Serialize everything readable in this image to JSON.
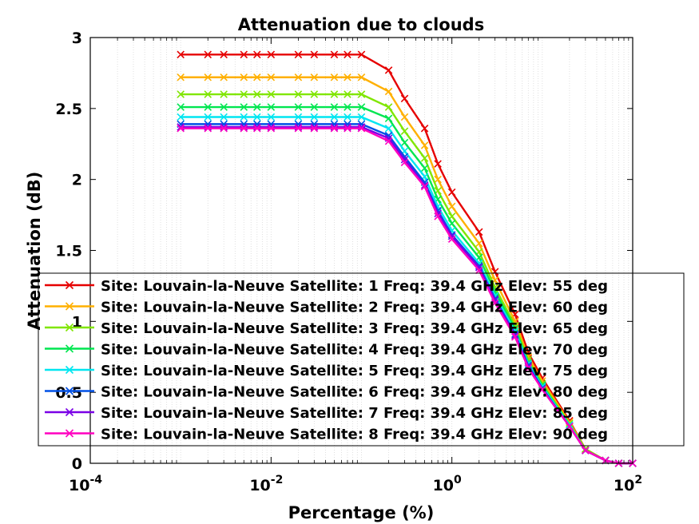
{
  "chart_data": {
    "type": "line",
    "title": "Attenuation due to clouds",
    "xlabel": "Percentage (%)",
    "ylabel": "Attenuation (dB)",
    "xscale": "log",
    "xlim": [
      0.0001,
      100
    ],
    "ylim": [
      0,
      3
    ],
    "grid": "minor dotted on x",
    "legend_position": "lower-left",
    "x_ticks": [
      {
        "base": "10",
        "exp": "-4"
      },
      {
        "base": "10",
        "exp": "-2"
      },
      {
        "base": "10",
        "exp": "0"
      },
      {
        "base": "10",
        "exp": "2"
      }
    ],
    "y_ticks": [
      "0",
      "0.5",
      "1",
      "1.5",
      "2",
      "2.5",
      "3"
    ],
    "x": [
      0.001,
      0.002,
      0.003,
      0.005,
      0.007,
      0.01,
      0.02,
      0.03,
      0.05,
      0.07,
      0.1,
      0.2,
      0.3,
      0.5,
      0.7,
      1,
      2,
      3,
      5,
      7,
      10,
      20,
      30,
      50,
      70,
      100
    ],
    "series": [
      {
        "name": "Site: Louvain-la-Neuve Satellite: 1 Freq: 39.4 GHz Elev: 55 deg",
        "color": "#e60000",
        "values": [
          2.88,
          2.88,
          2.88,
          2.88,
          2.88,
          2.88,
          2.88,
          2.88,
          2.88,
          2.88,
          2.88,
          2.77,
          2.57,
          2.36,
          2.11,
          1.91,
          1.63,
          1.35,
          1.05,
          0.78,
          0.6,
          0.3,
          0.1,
          0.02,
          0.0,
          0.0
        ]
      },
      {
        "name": "Site: Louvain-la-Neuve Satellite: 2 Freq: 39.4 GHz Elev: 60 deg",
        "color": "#ffb000",
        "values": [
          2.72,
          2.72,
          2.72,
          2.72,
          2.72,
          2.72,
          2.72,
          2.72,
          2.72,
          2.72,
          2.72,
          2.62,
          2.44,
          2.24,
          2.0,
          1.81,
          1.55,
          1.29,
          1.0,
          0.75,
          0.58,
          0.29,
          0.1,
          0.02,
          0.0,
          0.0
        ]
      },
      {
        "name": "Site: Louvain-la-Neuve Satellite: 3 Freq: 39.4 GHz Elev: 65 deg",
        "color": "#80e600",
        "values": [
          2.6,
          2.6,
          2.6,
          2.6,
          2.6,
          2.6,
          2.6,
          2.6,
          2.6,
          2.6,
          2.6,
          2.51,
          2.34,
          2.15,
          1.92,
          1.74,
          1.49,
          1.24,
          0.97,
          0.73,
          0.56,
          0.28,
          0.1,
          0.02,
          0.0,
          0.0
        ]
      },
      {
        "name": "Site: Louvain-la-Neuve Satellite: 4 Freq: 39.4 GHz Elev: 70 deg",
        "color": "#00e650",
        "values": [
          2.51,
          2.51,
          2.51,
          2.51,
          2.51,
          2.51,
          2.51,
          2.51,
          2.51,
          2.51,
          2.51,
          2.43,
          2.26,
          2.08,
          1.86,
          1.69,
          1.45,
          1.21,
          0.95,
          0.71,
          0.55,
          0.27,
          0.09,
          0.02,
          0.0,
          0.0
        ]
      },
      {
        "name": "Site: Louvain-la-Neuve Satellite: 5 Freq: 39.4 GHz Elev: 75 deg",
        "color": "#00e6f0",
        "values": [
          2.44,
          2.44,
          2.44,
          2.44,
          2.44,
          2.44,
          2.44,
          2.44,
          2.44,
          2.44,
          2.44,
          2.36,
          2.2,
          2.02,
          1.81,
          1.64,
          1.41,
          1.18,
          0.93,
          0.7,
          0.54,
          0.27,
          0.09,
          0.02,
          0.0,
          0.0
        ]
      },
      {
        "name": "Site: Louvain-la-Neuve Satellite: 6 Freq: 39.4 GHz Elev: 80 deg",
        "color": "#0050e6",
        "values": [
          2.39,
          2.39,
          2.39,
          2.39,
          2.39,
          2.39,
          2.39,
          2.39,
          2.39,
          2.39,
          2.39,
          2.31,
          2.16,
          1.98,
          1.78,
          1.61,
          1.39,
          1.16,
          0.91,
          0.69,
          0.53,
          0.26,
          0.09,
          0.02,
          0.0,
          0.0
        ]
      },
      {
        "name": "Site: Louvain-la-Neuve Satellite: 7 Freq: 39.4 GHz Elev: 85 deg",
        "color": "#7a00e6",
        "values": [
          2.37,
          2.37,
          2.37,
          2.37,
          2.37,
          2.37,
          2.37,
          2.37,
          2.37,
          2.37,
          2.37,
          2.29,
          2.14,
          1.96,
          1.76,
          1.6,
          1.38,
          1.15,
          0.9,
          0.68,
          0.52,
          0.26,
          0.09,
          0.02,
          0.0,
          0.0
        ]
      },
      {
        "name": "Site: Louvain-la-Neuve Satellite: 8 Freq: 39.4 GHz Elev: 90 deg",
        "color": "#ff00c0",
        "values": [
          2.36,
          2.36,
          2.36,
          2.36,
          2.36,
          2.36,
          2.36,
          2.36,
          2.36,
          2.36,
          2.36,
          2.27,
          2.12,
          1.95,
          1.74,
          1.58,
          1.36,
          1.13,
          0.89,
          0.67,
          0.52,
          0.26,
          0.09,
          0.02,
          0.0,
          0.0
        ]
      }
    ]
  }
}
